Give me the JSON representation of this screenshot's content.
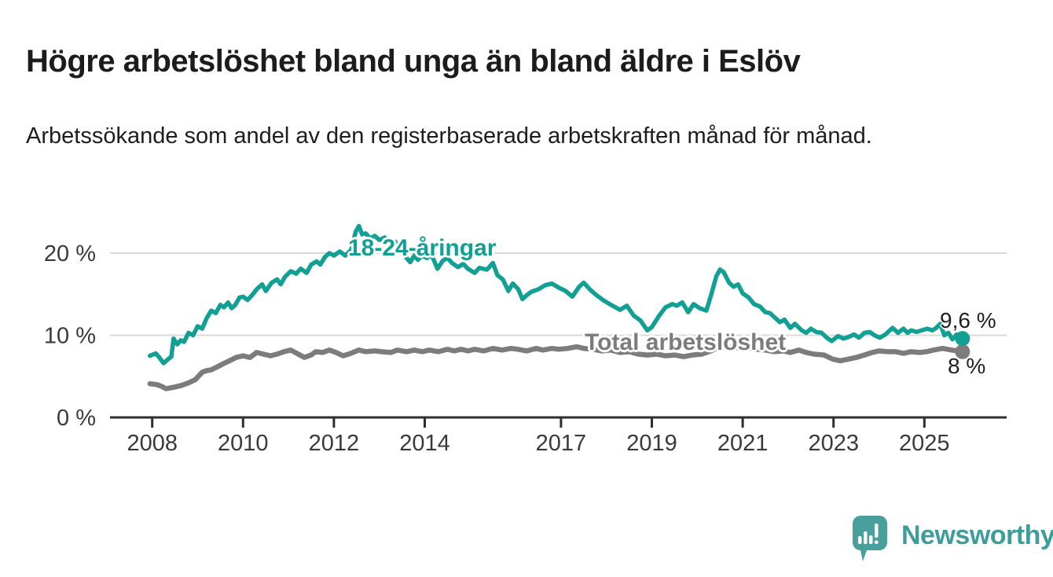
{
  "header": {
    "title": "Högre arbetslöshet bland unga än bland äldre i Eslöv",
    "subtitle": "Arbetssökande som andel av den registerbaserade arbetskraften månad för månad."
  },
  "chart_data": {
    "type": "line",
    "title": "Högre arbetslöshet bland unga än bland äldre i Eslöv",
    "xlabel": "",
    "ylabel": "",
    "x_unit": "decimal_year",
    "xlim": [
      2007.1,
      2026.8
    ],
    "ylim": [
      0,
      24
    ],
    "grid": "horizontal",
    "legend_position": "inline-labels",
    "x_ticks": [
      {
        "value": 2008,
        "label": "2008"
      },
      {
        "value": 2010,
        "label": "2010"
      },
      {
        "value": 2012,
        "label": "2012"
      },
      {
        "value": 2014,
        "label": "2014"
      },
      {
        "value": 2017,
        "label": "2017"
      },
      {
        "value": 2019,
        "label": "2019"
      },
      {
        "value": 2021,
        "label": "2021"
      },
      {
        "value": 2023,
        "label": "2023"
      },
      {
        "value": 2025,
        "label": "2025"
      }
    ],
    "y_ticks": [
      {
        "value": 0,
        "label": "0 %"
      },
      {
        "value": 10,
        "label": "10 %"
      },
      {
        "value": 20,
        "label": "20 %"
      }
    ],
    "series": [
      {
        "name": "18-24-åringar",
        "color": "#13a094",
        "end_value": 9.6,
        "end_label": "9,6 %",
        "points": [
          [
            2007.95,
            7.5
          ],
          [
            2008.08,
            7.8
          ],
          [
            2008.17,
            7.2
          ],
          [
            2008.25,
            6.6
          ],
          [
            2008.33,
            7.0
          ],
          [
            2008.42,
            7.4
          ],
          [
            2008.47,
            9.6
          ],
          [
            2008.55,
            8.9
          ],
          [
            2008.63,
            9.4
          ],
          [
            2008.7,
            9.2
          ],
          [
            2008.8,
            10.3
          ],
          [
            2008.9,
            10.0
          ],
          [
            2009.0,
            11.1
          ],
          [
            2009.1,
            10.8
          ],
          [
            2009.2,
            12.1
          ],
          [
            2009.3,
            13.0
          ],
          [
            2009.4,
            12.7
          ],
          [
            2009.5,
            13.7
          ],
          [
            2009.58,
            13.4
          ],
          [
            2009.67,
            14.0
          ],
          [
            2009.75,
            13.3
          ],
          [
            2009.83,
            13.7
          ],
          [
            2009.92,
            14.6
          ],
          [
            2010.0,
            14.7
          ],
          [
            2010.1,
            14.3
          ],
          [
            2010.2,
            14.9
          ],
          [
            2010.3,
            15.6
          ],
          [
            2010.42,
            16.2
          ],
          [
            2010.5,
            15.4
          ],
          [
            2010.63,
            16.4
          ],
          [
            2010.75,
            16.8
          ],
          [
            2010.83,
            16.2
          ],
          [
            2010.92,
            17.1
          ],
          [
            2011.05,
            17.8
          ],
          [
            2011.17,
            17.5
          ],
          [
            2011.27,
            18.1
          ],
          [
            2011.4,
            17.6
          ],
          [
            2011.5,
            18.6
          ],
          [
            2011.62,
            19.0
          ],
          [
            2011.7,
            18.6
          ],
          [
            2011.8,
            19.5
          ],
          [
            2011.9,
            20.0
          ],
          [
            2012.0,
            19.7
          ],
          [
            2012.13,
            20.2
          ],
          [
            2012.25,
            19.7
          ],
          [
            2012.38,
            20.4
          ],
          [
            2012.48,
            22.6
          ],
          [
            2012.55,
            23.3
          ],
          [
            2012.62,
            22.3
          ],
          [
            2012.7,
            22.4
          ],
          [
            2012.8,
            21.8
          ],
          [
            2012.9,
            22.1
          ],
          [
            2013.0,
            21.6
          ],
          [
            2013.12,
            21.9
          ],
          [
            2013.24,
            21.3
          ],
          [
            2013.35,
            21.4
          ],
          [
            2013.47,
            20.4
          ],
          [
            2013.6,
            19.4
          ],
          [
            2013.68,
            18.9
          ],
          [
            2013.77,
            19.7
          ],
          [
            2013.85,
            19.2
          ],
          [
            2013.94,
            19.7
          ],
          [
            2014.05,
            19.4
          ],
          [
            2014.15,
            19.8
          ],
          [
            2014.28,
            18.1
          ],
          [
            2014.4,
            19.1
          ],
          [
            2014.5,
            19.4
          ],
          [
            2014.6,
            18.8
          ],
          [
            2014.73,
            18.3
          ],
          [
            2014.85,
            18.7
          ],
          [
            2014.95,
            18.1
          ],
          [
            2015.1,
            17.6
          ],
          [
            2015.2,
            18.2
          ],
          [
            2015.37,
            18.0
          ],
          [
            2015.5,
            18.8
          ],
          [
            2015.6,
            17.3
          ],
          [
            2015.72,
            16.8
          ],
          [
            2015.84,
            15.4
          ],
          [
            2015.94,
            16.3
          ],
          [
            2016.06,
            15.6
          ],
          [
            2016.15,
            14.4
          ],
          [
            2016.25,
            14.9
          ],
          [
            2016.35,
            15.3
          ],
          [
            2016.5,
            15.6
          ],
          [
            2016.65,
            16.1
          ],
          [
            2016.8,
            16.3
          ],
          [
            2016.95,
            15.8
          ],
          [
            2017.1,
            15.4
          ],
          [
            2017.25,
            14.7
          ],
          [
            2017.4,
            15.9
          ],
          [
            2017.5,
            16.4
          ],
          [
            2017.65,
            15.5
          ],
          [
            2017.8,
            14.8
          ],
          [
            2017.95,
            14.2
          ],
          [
            2018.1,
            13.7
          ],
          [
            2018.3,
            13.1
          ],
          [
            2018.45,
            13.6
          ],
          [
            2018.6,
            12.4
          ],
          [
            2018.75,
            11.8
          ],
          [
            2018.9,
            10.6
          ],
          [
            2019.0,
            11.0
          ],
          [
            2019.15,
            12.3
          ],
          [
            2019.3,
            13.4
          ],
          [
            2019.45,
            13.8
          ],
          [
            2019.55,
            13.6
          ],
          [
            2019.67,
            14.0
          ],
          [
            2019.8,
            12.8
          ],
          [
            2019.92,
            13.8
          ],
          [
            2020.05,
            13.3
          ],
          [
            2020.2,
            13.0
          ],
          [
            2020.3,
            14.8
          ],
          [
            2020.42,
            17.2
          ],
          [
            2020.5,
            18.0
          ],
          [
            2020.58,
            17.7
          ],
          [
            2020.7,
            16.4
          ],
          [
            2020.8,
            15.9
          ],
          [
            2020.9,
            16.2
          ],
          [
            2021.0,
            15.1
          ],
          [
            2021.13,
            14.6
          ],
          [
            2021.25,
            13.8
          ],
          [
            2021.38,
            13.5
          ],
          [
            2021.5,
            12.8
          ],
          [
            2021.6,
            12.7
          ],
          [
            2021.72,
            12.1
          ],
          [
            2021.82,
            11.6
          ],
          [
            2021.92,
            11.9
          ],
          [
            2022.05,
            10.9
          ],
          [
            2022.15,
            11.4
          ],
          [
            2022.3,
            10.6
          ],
          [
            2022.4,
            10.3
          ],
          [
            2022.5,
            10.8
          ],
          [
            2022.62,
            10.4
          ],
          [
            2022.74,
            10.3
          ],
          [
            2022.85,
            9.7
          ],
          [
            2022.96,
            9.3
          ],
          [
            2023.1,
            9.9
          ],
          [
            2023.22,
            9.6
          ],
          [
            2023.33,
            9.8
          ],
          [
            2023.45,
            10.1
          ],
          [
            2023.56,
            9.7
          ],
          [
            2023.68,
            10.3
          ],
          [
            2023.8,
            10.4
          ],
          [
            2023.9,
            10.0
          ],
          [
            2024.02,
            9.7
          ],
          [
            2024.14,
            10.1
          ],
          [
            2024.3,
            10.9
          ],
          [
            2024.42,
            10.3
          ],
          [
            2024.54,
            10.8
          ],
          [
            2024.63,
            10.3
          ],
          [
            2024.71,
            10.6
          ],
          [
            2024.83,
            10.4
          ],
          [
            2024.94,
            10.6
          ],
          [
            2025.06,
            10.8
          ],
          [
            2025.18,
            10.6
          ],
          [
            2025.26,
            10.9
          ],
          [
            2025.35,
            11.4
          ],
          [
            2025.44,
            10.0
          ],
          [
            2025.53,
            10.3
          ],
          [
            2025.62,
            9.5
          ],
          [
            2025.71,
            10.1
          ],
          [
            2025.78,
            9.4
          ],
          [
            2025.84,
            9.6
          ]
        ]
      },
      {
        "name": "Total arbetslöshet",
        "color": "#7c7c7c",
        "end_value": 8.0,
        "end_label": "8 %",
        "points": [
          [
            2007.95,
            4.1
          ],
          [
            2008.1,
            4.0
          ],
          [
            2008.2,
            3.8
          ],
          [
            2008.3,
            3.5
          ],
          [
            2008.4,
            3.6
          ],
          [
            2008.5,
            3.7
          ],
          [
            2008.65,
            3.9
          ],
          [
            2008.8,
            4.2
          ],
          [
            2008.95,
            4.6
          ],
          [
            2009.1,
            5.5
          ],
          [
            2009.2,
            5.7
          ],
          [
            2009.3,
            5.8
          ],
          [
            2009.45,
            6.2
          ],
          [
            2009.55,
            6.5
          ],
          [
            2009.7,
            6.9
          ],
          [
            2009.85,
            7.3
          ],
          [
            2010.0,
            7.5
          ],
          [
            2010.15,
            7.3
          ],
          [
            2010.3,
            7.9
          ],
          [
            2010.45,
            7.7
          ],
          [
            2010.6,
            7.5
          ],
          [
            2010.75,
            7.7
          ],
          [
            2010.9,
            8.0
          ],
          [
            2011.05,
            8.2
          ],
          [
            2011.2,
            7.75
          ],
          [
            2011.35,
            7.3
          ],
          [
            2011.5,
            7.6
          ],
          [
            2011.6,
            8.0
          ],
          [
            2011.75,
            7.9
          ],
          [
            2011.9,
            8.2
          ],
          [
            2012.05,
            7.9
          ],
          [
            2012.2,
            7.5
          ],
          [
            2012.35,
            7.75
          ],
          [
            2012.55,
            8.2
          ],
          [
            2012.7,
            8.0
          ],
          [
            2012.9,
            8.1
          ],
          [
            2013.05,
            8.0
          ],
          [
            2013.25,
            7.9
          ],
          [
            2013.4,
            8.2
          ],
          [
            2013.6,
            8.0
          ],
          [
            2013.77,
            8.2
          ],
          [
            2013.95,
            8.0
          ],
          [
            2014.1,
            8.2
          ],
          [
            2014.3,
            8.0
          ],
          [
            2014.5,
            8.3
          ],
          [
            2014.65,
            8.1
          ],
          [
            2014.8,
            8.3
          ],
          [
            2014.95,
            8.1
          ],
          [
            2015.1,
            8.3
          ],
          [
            2015.3,
            8.1
          ],
          [
            2015.5,
            8.4
          ],
          [
            2015.7,
            8.2
          ],
          [
            2015.9,
            8.4
          ],
          [
            2016.05,
            8.3
          ],
          [
            2016.25,
            8.1
          ],
          [
            2016.45,
            8.4
          ],
          [
            2016.6,
            8.2
          ],
          [
            2016.8,
            8.4
          ],
          [
            2016.95,
            8.3
          ],
          [
            2017.15,
            8.4
          ],
          [
            2017.35,
            8.6
          ],
          [
            2017.5,
            8.4
          ],
          [
            2017.7,
            8.3
          ],
          [
            2017.9,
            8.1
          ],
          [
            2018.1,
            8.2
          ],
          [
            2018.3,
            7.9
          ],
          [
            2018.5,
            8.0
          ],
          [
            2018.7,
            7.7
          ],
          [
            2018.9,
            7.6
          ],
          [
            2019.1,
            7.7
          ],
          [
            2019.3,
            7.5
          ],
          [
            2019.5,
            7.6
          ],
          [
            2019.7,
            7.4
          ],
          [
            2019.9,
            7.6
          ],
          [
            2020.1,
            7.7
          ],
          [
            2020.3,
            8.1
          ],
          [
            2020.5,
            8.7
          ],
          [
            2020.65,
            8.5
          ],
          [
            2020.8,
            8.6
          ],
          [
            2020.95,
            8.4
          ],
          [
            2021.1,
            8.5
          ],
          [
            2021.3,
            8.3
          ],
          [
            2021.5,
            8.2
          ],
          [
            2021.7,
            8.0
          ],
          [
            2021.9,
            8.1
          ],
          [
            2022.05,
            7.9
          ],
          [
            2022.24,
            8.2
          ],
          [
            2022.4,
            7.9
          ],
          [
            2022.57,
            7.7
          ],
          [
            2022.79,
            7.6
          ],
          [
            2022.98,
            7.1
          ],
          [
            2023.15,
            6.9
          ],
          [
            2023.33,
            7.1
          ],
          [
            2023.5,
            7.3
          ],
          [
            2023.68,
            7.6
          ],
          [
            2023.85,
            7.9
          ],
          [
            2024.0,
            8.1
          ],
          [
            2024.2,
            8.0
          ],
          [
            2024.37,
            8.0
          ],
          [
            2024.54,
            7.8
          ],
          [
            2024.7,
            8.0
          ],
          [
            2024.9,
            7.9
          ],
          [
            2025.05,
            8.0
          ],
          [
            2025.2,
            8.2
          ],
          [
            2025.4,
            8.4
          ],
          [
            2025.6,
            8.2
          ],
          [
            2025.84,
            8.0
          ]
        ]
      }
    ]
  },
  "footer": {
    "brand": "Newsworthy"
  },
  "colors": {
    "young_line": "#13a094",
    "total_line": "#7c7c7c",
    "gridline": "#d9d9d9",
    "axis": "#2e2e2e",
    "tick_text": "#3a3a3a",
    "value_text": "#1f1f1f",
    "brand_teal": "#47a09c",
    "background": "#ffffff"
  }
}
